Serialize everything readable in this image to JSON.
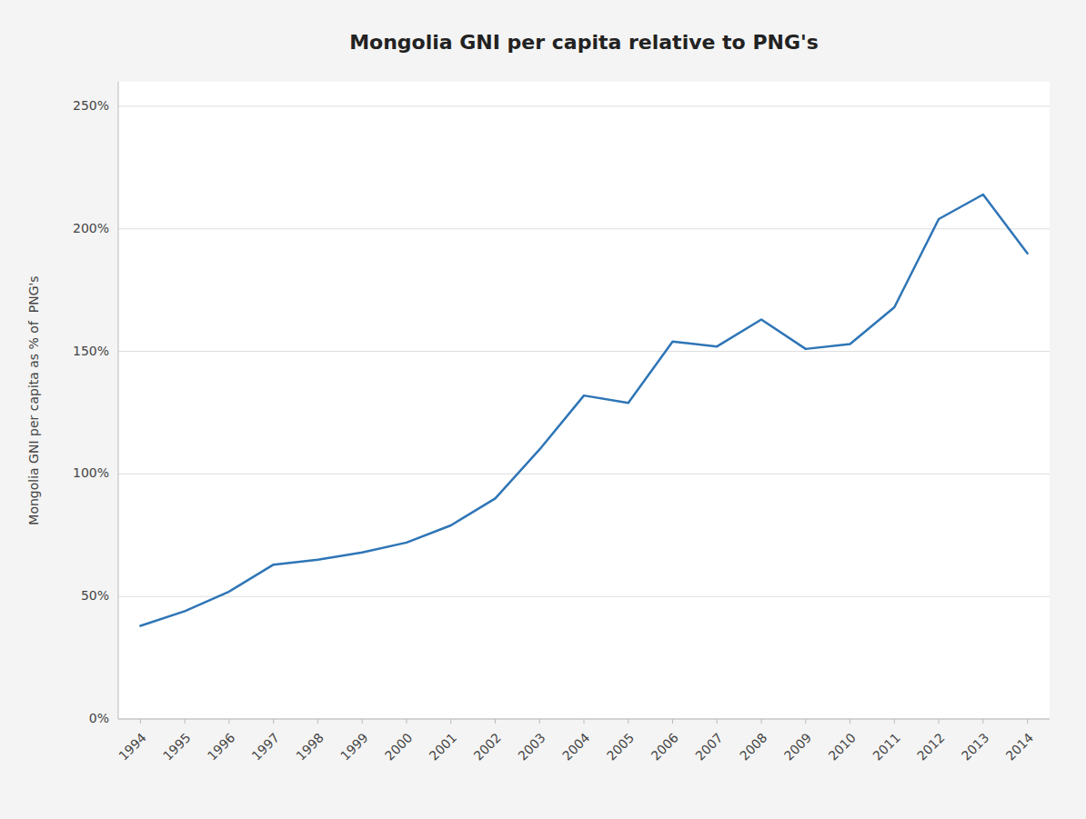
{
  "chart_data": {
    "type": "line",
    "title": "Mongolia GNI per capita relative to PNG's",
    "ylabel": "Mongolia GNI per capita as % of  PNG's",
    "x": [
      1994,
      1995,
      1996,
      1997,
      1998,
      1999,
      2000,
      2001,
      2002,
      2003,
      2004,
      2005,
      2006,
      2007,
      2008,
      2009,
      2010,
      2011,
      2012,
      2013,
      2014
    ],
    "values": [
      0.38,
      0.44,
      0.52,
      0.63,
      0.65,
      0.68,
      0.72,
      0.79,
      0.9,
      1.1,
      1.32,
      1.29,
      1.54,
      1.52,
      1.63,
      1.51,
      1.53,
      1.68,
      2.04,
      2.14,
      1.9
    ],
    "color": "#2E75B6",
    "xlim": [
      1993.5,
      2014.5
    ],
    "xticks": [
      1994,
      1995,
      1996,
      1997,
      1998,
      1999,
      2000,
      2001,
      2002,
      2003,
      2004,
      2005,
      2006,
      2007,
      2008,
      2009,
      2010,
      2011,
      2012,
      2013,
      2014
    ],
    "ylim": [
      0.0,
      2.6
    ],
    "yticks": [
      {
        "value": 0.0,
        "label": "0%"
      },
      {
        "value": 0.5,
        "label": "50%"
      },
      {
        "value": 1.0,
        "label": "100%"
      },
      {
        "value": 1.5,
        "label": "150%"
      },
      {
        "value": 2.0,
        "label": "200%"
      },
      {
        "value": 2.5,
        "label": "250%"
      }
    ],
    "grid": "y"
  }
}
